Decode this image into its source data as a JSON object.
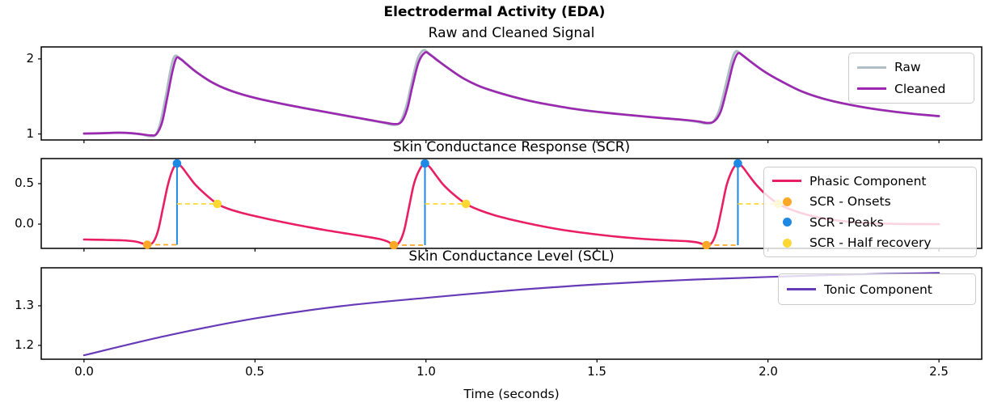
{
  "figure": {
    "title": "Electrodermal Activity (EDA)",
    "xlabel": "Time (seconds)",
    "xticklabels": [
      "0.0",
      "0.5",
      "1.0",
      "1.5",
      "2.0",
      "2.5"
    ]
  },
  "chart_data": [
    {
      "type": "line",
      "title": "Raw and Cleaned Signal",
      "xlim": [
        -0.125,
        2.625
      ],
      "ylim": [
        0.92,
        2.16
      ],
      "xticks": [
        0,
        0.5,
        1,
        1.5,
        2,
        2.5
      ],
      "yticks": [
        1,
        2
      ],
      "yticklabels": [
        "1",
        "2"
      ],
      "legend_position": "upper right",
      "series": [
        {
          "name": "Raw",
          "color": "#B0BEC5",
          "linewidth": 3,
          "points": [
            [
              0.0,
              1.005
            ],
            [
              0.05,
              1.01
            ],
            [
              0.1,
              1.018
            ],
            [
              0.14,
              1.01
            ],
            [
              0.17,
              0.992
            ],
            [
              0.192,
              0.972
            ],
            [
              0.21,
              0.99
            ],
            [
              0.224,
              1.16
            ],
            [
              0.24,
              1.52
            ],
            [
              0.254,
              1.87
            ],
            [
              0.265,
              2.035
            ],
            [
              0.28,
              2.01
            ],
            [
              0.3,
              1.935
            ],
            [
              0.33,
              1.82
            ],
            [
              0.37,
              1.7
            ],
            [
              0.41,
              1.61
            ],
            [
              0.46,
              1.53
            ],
            [
              0.51,
              1.47
            ],
            [
              0.56,
              1.42
            ],
            [
              0.62,
              1.365
            ],
            [
              0.68,
              1.315
            ],
            [
              0.74,
              1.265
            ],
            [
              0.8,
              1.215
            ],
            [
              0.85,
              1.172
            ],
            [
              0.88,
              1.145
            ],
            [
              0.904,
              1.122
            ],
            [
              0.924,
              1.155
            ],
            [
              0.942,
              1.36
            ],
            [
              0.958,
              1.68
            ],
            [
              0.975,
              1.99
            ],
            [
              0.992,
              2.115
            ],
            [
              1.008,
              2.075
            ],
            [
              1.035,
              1.98
            ],
            [
              1.07,
              1.86
            ],
            [
              1.11,
              1.74
            ],
            [
              1.16,
              1.63
            ],
            [
              1.22,
              1.54
            ],
            [
              1.29,
              1.455
            ],
            [
              1.36,
              1.39
            ],
            [
              1.44,
              1.33
            ],
            [
              1.52,
              1.285
            ],
            [
              1.6,
              1.25
            ],
            [
              1.68,
              1.215
            ],
            [
              1.75,
              1.188
            ],
            [
              1.793,
              1.163
            ],
            [
              1.818,
              1.14
            ],
            [
              1.84,
              1.165
            ],
            [
              1.858,
              1.32
            ],
            [
              1.876,
              1.64
            ],
            [
              1.893,
              1.96
            ],
            [
              1.906,
              2.1
            ],
            [
              1.922,
              2.06
            ],
            [
              1.95,
              1.965
            ],
            [
              1.99,
              1.83
            ],
            [
              2.04,
              1.7
            ],
            [
              2.1,
              1.565
            ],
            [
              2.17,
              1.46
            ],
            [
              2.25,
              1.38
            ],
            [
              2.33,
              1.32
            ],
            [
              2.42,
              1.27
            ],
            [
              2.5,
              1.238
            ]
          ]
        },
        {
          "name": "Cleaned",
          "color": "#9C27B0",
          "linewidth": 2.6,
          "points": [
            [
              0.0,
              1.005
            ],
            [
              0.05,
              1.01
            ],
            [
              0.1,
              1.016
            ],
            [
              0.14,
              1.01
            ],
            [
              0.17,
              0.995
            ],
            [
              0.195,
              0.982
            ],
            [
              0.212,
              1.0
            ],
            [
              0.228,
              1.15
            ],
            [
              0.243,
              1.47
            ],
            [
              0.258,
              1.82
            ],
            [
              0.27,
              2.01
            ],
            [
              0.283,
              1.995
            ],
            [
              0.3,
              1.93
            ],
            [
              0.33,
              1.82
            ],
            [
              0.37,
              1.7
            ],
            [
              0.41,
              1.61
            ],
            [
              0.46,
              1.53
            ],
            [
              0.51,
              1.47
            ],
            [
              0.56,
              1.42
            ],
            [
              0.62,
              1.365
            ],
            [
              0.68,
              1.315
            ],
            [
              0.74,
              1.265
            ],
            [
              0.8,
              1.215
            ],
            [
              0.85,
              1.175
            ],
            [
              0.882,
              1.15
            ],
            [
              0.908,
              1.132
            ],
            [
              0.928,
              1.16
            ],
            [
              0.945,
              1.33
            ],
            [
              0.96,
              1.63
            ],
            [
              0.978,
              1.95
            ],
            [
              0.997,
              2.085
            ],
            [
              1.012,
              2.055
            ],
            [
              1.035,
              1.975
            ],
            [
              1.07,
              1.86
            ],
            [
              1.11,
              1.74
            ],
            [
              1.16,
              1.63
            ],
            [
              1.22,
              1.54
            ],
            [
              1.29,
              1.455
            ],
            [
              1.36,
              1.39
            ],
            [
              1.44,
              1.33
            ],
            [
              1.52,
              1.285
            ],
            [
              1.6,
              1.25
            ],
            [
              1.68,
              1.215
            ],
            [
              1.75,
              1.19
            ],
            [
              1.795,
              1.168
            ],
            [
              1.822,
              1.148
            ],
            [
              1.843,
              1.17
            ],
            [
              1.862,
              1.3
            ],
            [
              1.88,
              1.6
            ],
            [
              1.898,
              1.93
            ],
            [
              1.912,
              2.075
            ],
            [
              1.928,
              2.04
            ],
            [
              1.95,
              1.96
            ],
            [
              1.99,
              1.83
            ],
            [
              2.04,
              1.7
            ],
            [
              2.1,
              1.565
            ],
            [
              2.17,
              1.46
            ],
            [
              2.25,
              1.38
            ],
            [
              2.33,
              1.32
            ],
            [
              2.42,
              1.27
            ],
            [
              2.5,
              1.238
            ]
          ]
        }
      ]
    },
    {
      "type": "line",
      "title": "Skin Conductance Response (SCR)",
      "xlim": [
        -0.125,
        2.625
      ],
      "ylim": [
        -0.3,
        0.81
      ],
      "xticks": [
        0,
        0.5,
        1,
        1.5,
        2,
        2.5
      ],
      "yticks": [
        0.0,
        0.5
      ],
      "yticklabels": [
        "0.0",
        "0.5"
      ],
      "legend_position": "upper right",
      "series": [
        {
          "name": "Phasic Component",
          "color": "#E91E63",
          "linewidth": 2.6,
          "points": [
            [
              0.0,
              -0.19
            ],
            [
              0.06,
              -0.195
            ],
            [
              0.11,
              -0.2
            ],
            [
              0.15,
              -0.215
            ],
            [
              0.168,
              -0.235
            ],
            [
              0.185,
              -0.255
            ],
            [
              0.202,
              -0.225
            ],
            [
              0.216,
              -0.09
            ],
            [
              0.23,
              0.18
            ],
            [
              0.245,
              0.48
            ],
            [
              0.259,
              0.67
            ],
            [
              0.272,
              0.75
            ],
            [
              0.286,
              0.705
            ],
            [
              0.303,
              0.61
            ],
            [
              0.325,
              0.49
            ],
            [
              0.352,
              0.38
            ],
            [
              0.39,
              0.25
            ],
            [
              0.425,
              0.185
            ],
            [
              0.465,
              0.135
            ],
            [
              0.515,
              0.085
            ],
            [
              0.575,
              0.03
            ],
            [
              0.635,
              -0.02
            ],
            [
              0.7,
              -0.07
            ],
            [
              0.765,
              -0.115
            ],
            [
              0.825,
              -0.155
            ],
            [
              0.865,
              -0.185
            ],
            [
              0.888,
              -0.215
            ],
            [
              0.906,
              -0.26
            ],
            [
              0.922,
              -0.225
            ],
            [
              0.936,
              -0.08
            ],
            [
              0.95,
              0.2
            ],
            [
              0.965,
              0.5
            ],
            [
              0.982,
              0.68
            ],
            [
              0.997,
              0.75
            ],
            [
              1.011,
              0.705
            ],
            [
              1.028,
              0.61
            ],
            [
              1.05,
              0.49
            ],
            [
              1.08,
              0.37
            ],
            [
              1.117,
              0.25
            ],
            [
              1.155,
              0.175
            ],
            [
              1.2,
              0.11
            ],
            [
              1.255,
              0.05
            ],
            [
              1.32,
              -0.01
            ],
            [
              1.39,
              -0.065
            ],
            [
              1.465,
              -0.11
            ],
            [
              1.545,
              -0.15
            ],
            [
              1.625,
              -0.18
            ],
            [
              1.705,
              -0.2
            ],
            [
              1.765,
              -0.212
            ],
            [
              1.795,
              -0.228
            ],
            [
              1.82,
              -0.26
            ],
            [
              1.836,
              -0.23
            ],
            [
              1.85,
              -0.09
            ],
            [
              1.864,
              0.18
            ],
            [
              1.879,
              0.48
            ],
            [
              1.896,
              0.67
            ],
            [
              1.912,
              0.75
            ],
            [
              1.926,
              0.705
            ],
            [
              1.943,
              0.61
            ],
            [
              1.965,
              0.49
            ],
            [
              1.993,
              0.37
            ],
            [
              2.03,
              0.25
            ],
            [
              2.07,
              0.175
            ],
            [
              2.115,
              0.115
            ],
            [
              2.17,
              0.065
            ],
            [
              2.235,
              0.03
            ],
            [
              2.31,
              0.01
            ],
            [
              2.4,
              0.002
            ],
            [
              2.5,
              0.0
            ]
          ]
        }
      ],
      "scatter": [
        {
          "name": "SCR - Onsets",
          "color": "#FFA726",
          "points": [
            [
              0.185,
              -0.255
            ],
            [
              0.906,
              -0.26
            ],
            [
              1.82,
              -0.26
            ]
          ]
        },
        {
          "name": "SCR - Peaks",
          "color": "#1E88E5",
          "points": [
            [
              0.272,
              0.75
            ],
            [
              0.997,
              0.75
            ],
            [
              1.912,
              0.75
            ]
          ]
        },
        {
          "name": "SCR - Half recovery",
          "color": "#FDD835",
          "points": [
            [
              0.39,
              0.25
            ],
            [
              1.117,
              0.25
            ],
            [
              2.03,
              0.25
            ]
          ]
        }
      ],
      "annotations": {
        "peak_vlines": {
          "color": "#1E88E5",
          "style": "solid",
          "segments": [
            {
              "x": 0.272,
              "y0": -0.255,
              "y1": 0.75
            },
            {
              "x": 0.997,
              "y0": -0.26,
              "y1": 0.75
            },
            {
              "x": 1.912,
              "y0": -0.26,
              "y1": 0.75
            }
          ]
        },
        "onset_hlines": {
          "color": "#FFA726",
          "style": "dashed",
          "segments": [
            {
              "y": -0.255,
              "x0": 0.185,
              "x1": 0.272
            },
            {
              "y": -0.26,
              "x0": 0.906,
              "x1": 0.997
            },
            {
              "y": -0.26,
              "x0": 1.82,
              "x1": 1.912
            }
          ]
        },
        "half_recovery_hlines": {
          "color": "#FDD835",
          "style": "dashed",
          "segments": [
            {
              "y": 0.25,
              "x0": 0.272,
              "x1": 0.39
            },
            {
              "y": 0.25,
              "x0": 0.997,
              "x1": 1.117
            },
            {
              "y": 0.25,
              "x0": 1.912,
              "x1": 2.03
            }
          ]
        }
      }
    },
    {
      "type": "line",
      "title": "Skin Conductance Level (SCL)",
      "xlim": [
        -0.125,
        2.625
      ],
      "ylim": [
        1.165,
        1.396
      ],
      "xticks": [
        0,
        0.5,
        1,
        1.5,
        2,
        2.5
      ],
      "yticks": [
        1.2,
        1.3
      ],
      "yticklabels": [
        "1.2",
        "1.3"
      ],
      "legend_position": "upper right",
      "series": [
        {
          "name": "Tonic Component",
          "color": "#673AB7",
          "linewidth": 2.2,
          "points": [
            [
              0.0,
              1.175
            ],
            [
              0.25,
              1.226
            ],
            [
              0.5,
              1.268
            ],
            [
              0.75,
              1.299
            ],
            [
              1.0,
              1.32
            ],
            [
              1.25,
              1.339
            ],
            [
              1.5,
              1.354
            ],
            [
              1.75,
              1.365
            ],
            [
              2.0,
              1.373
            ],
            [
              2.25,
              1.379
            ],
            [
              2.5,
              1.383
            ]
          ]
        }
      ]
    }
  ]
}
